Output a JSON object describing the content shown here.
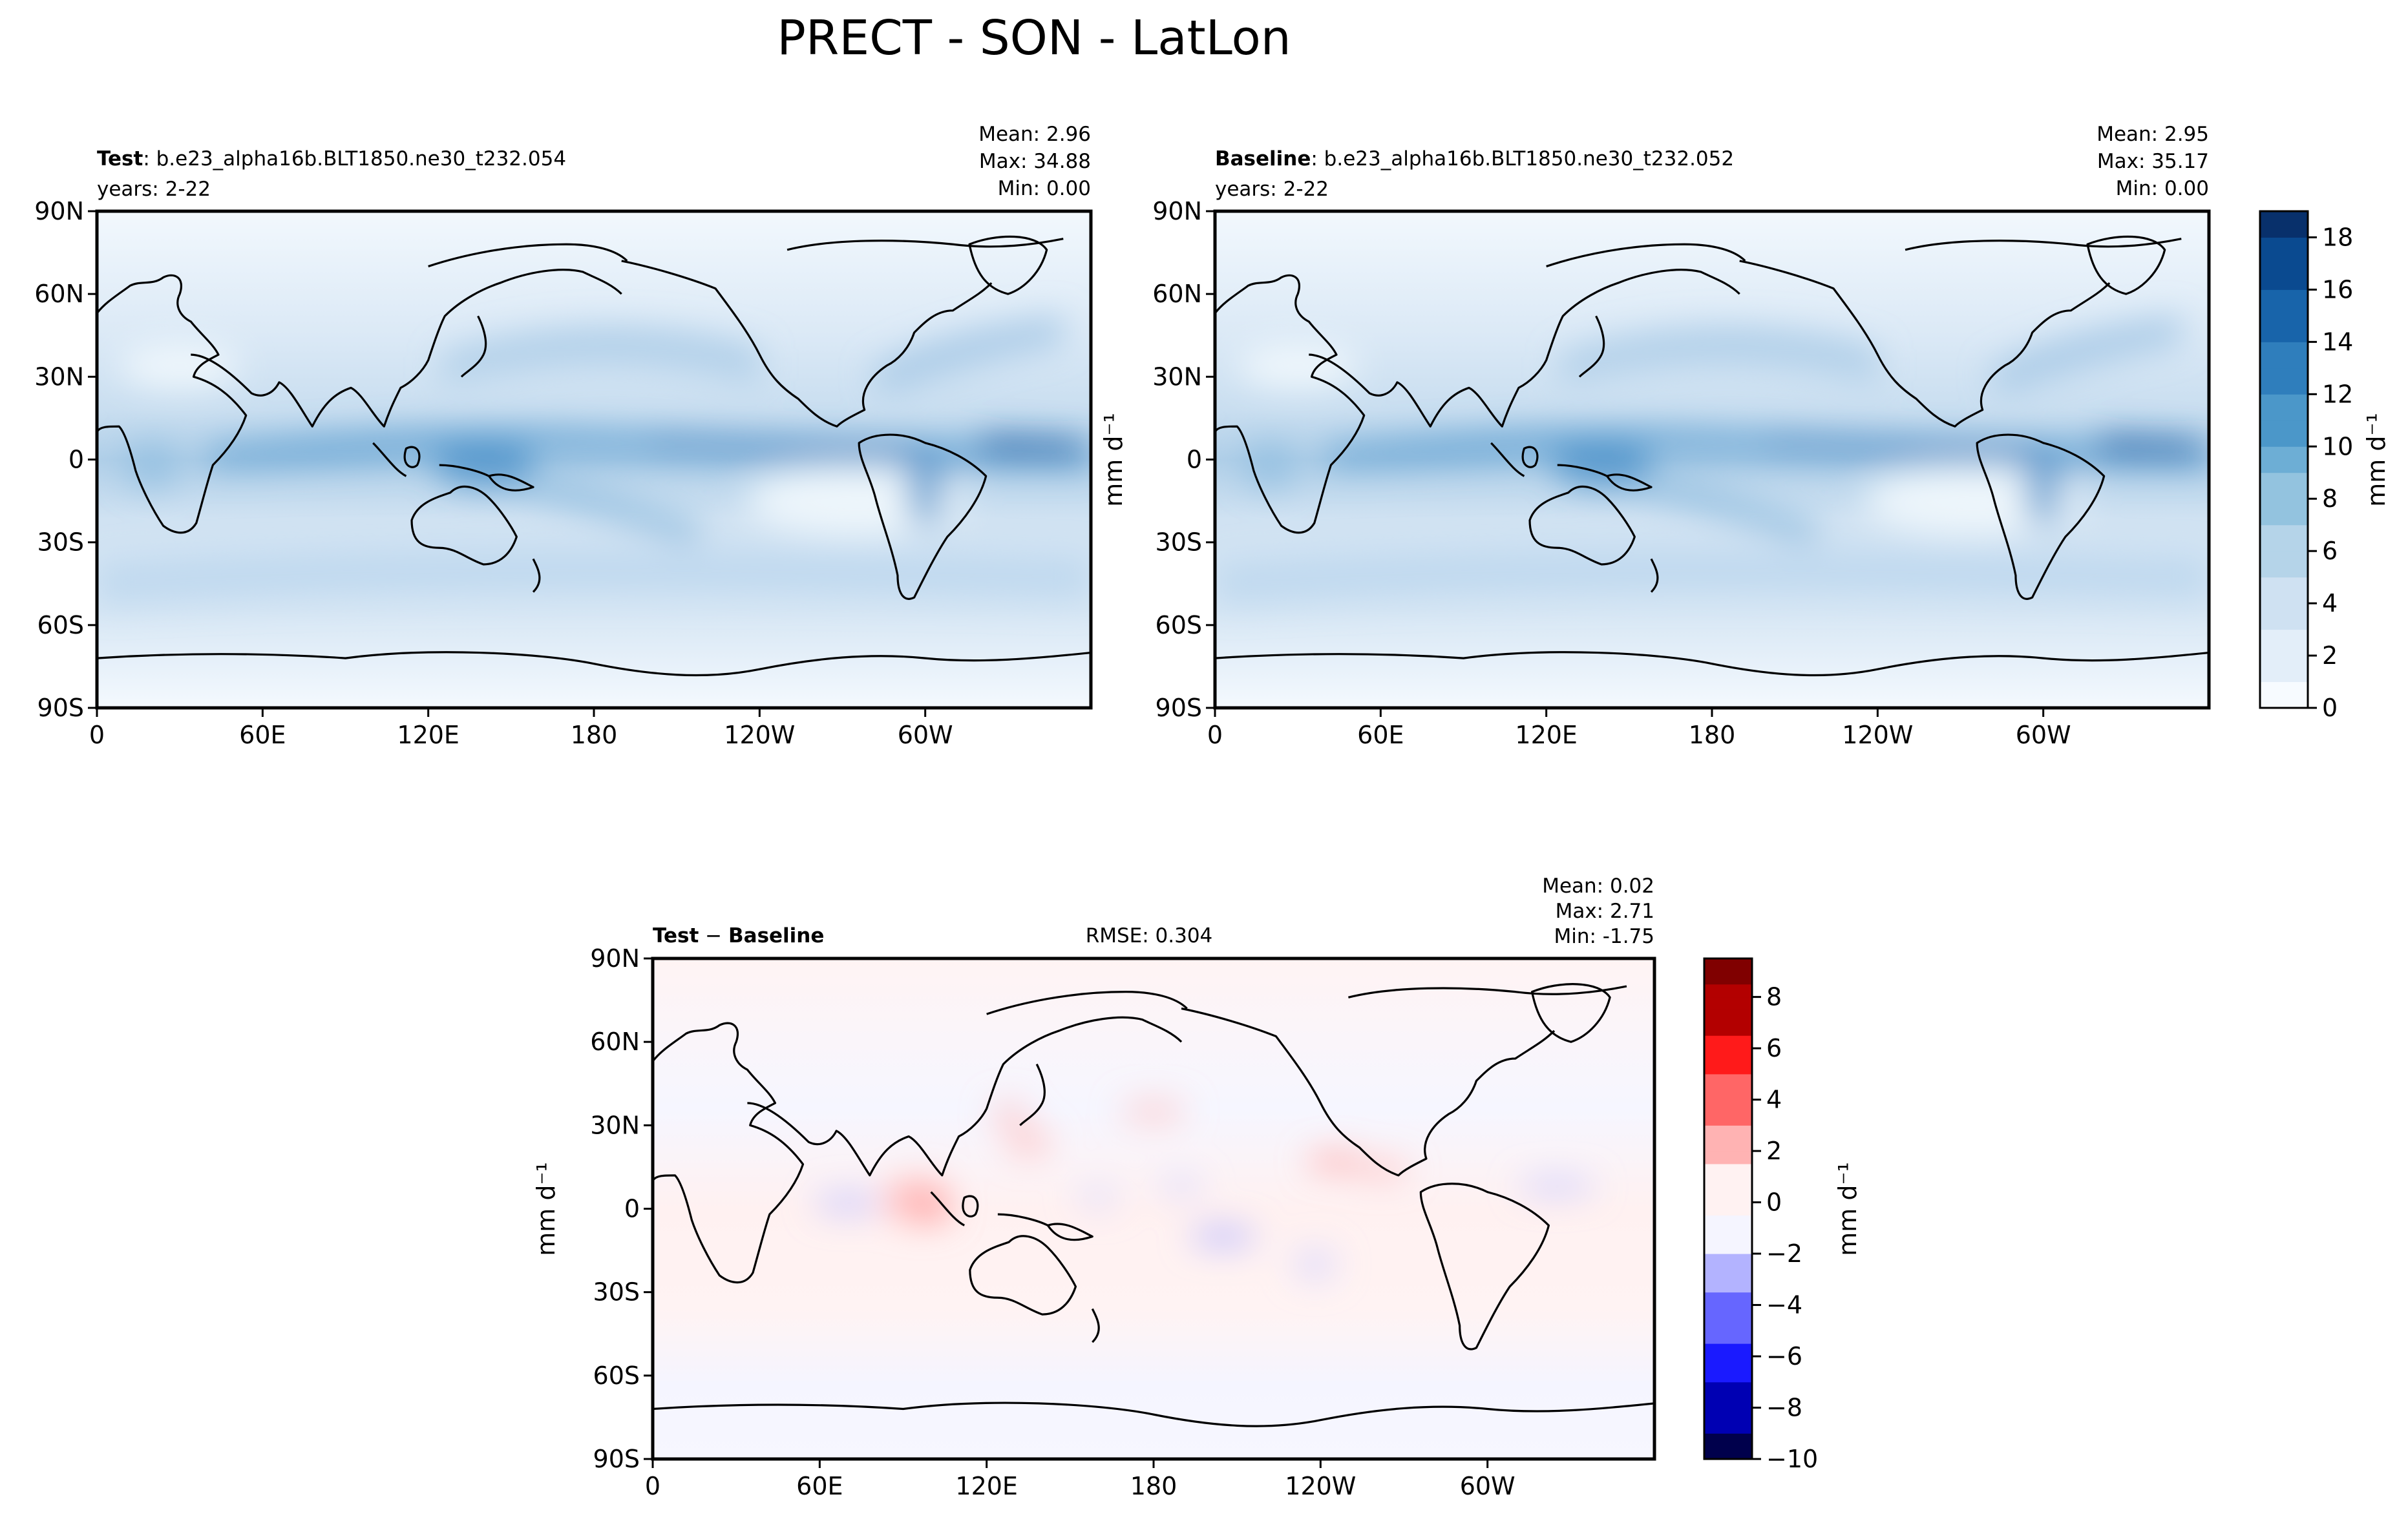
{
  "figure": {
    "title": "PRECT - SON - LatLon"
  },
  "colors": {
    "blues": [
      "#f7fbff",
      "#e3eef9",
      "#cfe1f2",
      "#b5d4e9",
      "#93c3df",
      "#6daed5",
      "#4b97c9",
      "#2f7ebc",
      "#1864aa",
      "#0a4a90",
      "#08306b"
    ],
    "diverging": [
      "#00004c",
      "#0000b3",
      "#1a1aff",
      "#6666ff",
      "#b3b3ff",
      "#f5f5ff",
      "#fff2f2",
      "#ffb3b3",
      "#ff6666",
      "#ff1a1a",
      "#b30000",
      "#800000"
    ]
  },
  "chart_data": [
    {
      "type": "heatmap",
      "panel": "test",
      "label_bold": "Test",
      "label_rest": ": b.e23_alpha16b.BLT1850.ne30_t232.054",
      "years": "years: 2-22",
      "stats": {
        "mean": "Mean:  2.96",
        "max": "Max: 34.88",
        "min": "Min:  0.00"
      },
      "xticks": [
        "0",
        "60E",
        "120E",
        "180",
        "120W",
        "60W"
      ],
      "yticks": [
        "90N",
        "60N",
        "30N",
        "0",
        "30S",
        "60S",
        "90S"
      ],
      "xlim": [
        0,
        360
      ],
      "ylim": [
        -90,
        90
      ]
    },
    {
      "type": "heatmap",
      "panel": "baseline",
      "label_bold": "Baseline",
      "label_rest": ": b.e23_alpha16b.BLT1850.ne30_t232.052",
      "years": "years: 2-22",
      "stats": {
        "mean": "Mean:  2.95",
        "max": "Max: 35.17",
        "min": "Min:  0.00"
      },
      "xticks": [
        "0",
        "60E",
        "120E",
        "180",
        "120W",
        "60W"
      ],
      "yticks": [
        "90N",
        "60N",
        "30N",
        "0",
        "30S",
        "60S",
        "90S"
      ],
      "xlim": [
        0,
        360
      ],
      "ylim": [
        -90,
        90
      ],
      "colorbar": {
        "label": "mm d⁻¹",
        "ticks": [
          "0",
          "2",
          "4",
          "6",
          "8",
          "10",
          "12",
          "14",
          "16",
          "18"
        ],
        "range": [
          0,
          19
        ]
      }
    },
    {
      "type": "heatmap",
      "panel": "diff",
      "label_bold_a": "Test",
      "label_sep": " − ",
      "label_bold_b": "Baseline",
      "rmse": "RMSE: 0.304",
      "stats": {
        "mean": "Mean:  0.02",
        "max": "Max:  2.71",
        "min": "Min: -1.75"
      },
      "xticks": [
        "0",
        "60E",
        "120E",
        "180",
        "120W",
        "60W"
      ],
      "yticks": [
        "90N",
        "60N",
        "30N",
        "0",
        "30S",
        "60S",
        "90S"
      ],
      "xlim": [
        0,
        360
      ],
      "ylim": [
        -90,
        90
      ],
      "colorbar": {
        "label": "mm d⁻¹",
        "ticks": [
          "−10",
          "−8",
          "−6",
          "−4",
          "−2",
          "0",
          "2",
          "4",
          "6",
          "8"
        ],
        "range": [
          -10,
          9.5
        ]
      }
    }
  ],
  "ylabels": {
    "left_of_baseline": "mm d⁻¹",
    "left_of_diff": "mm d⁻¹"
  }
}
